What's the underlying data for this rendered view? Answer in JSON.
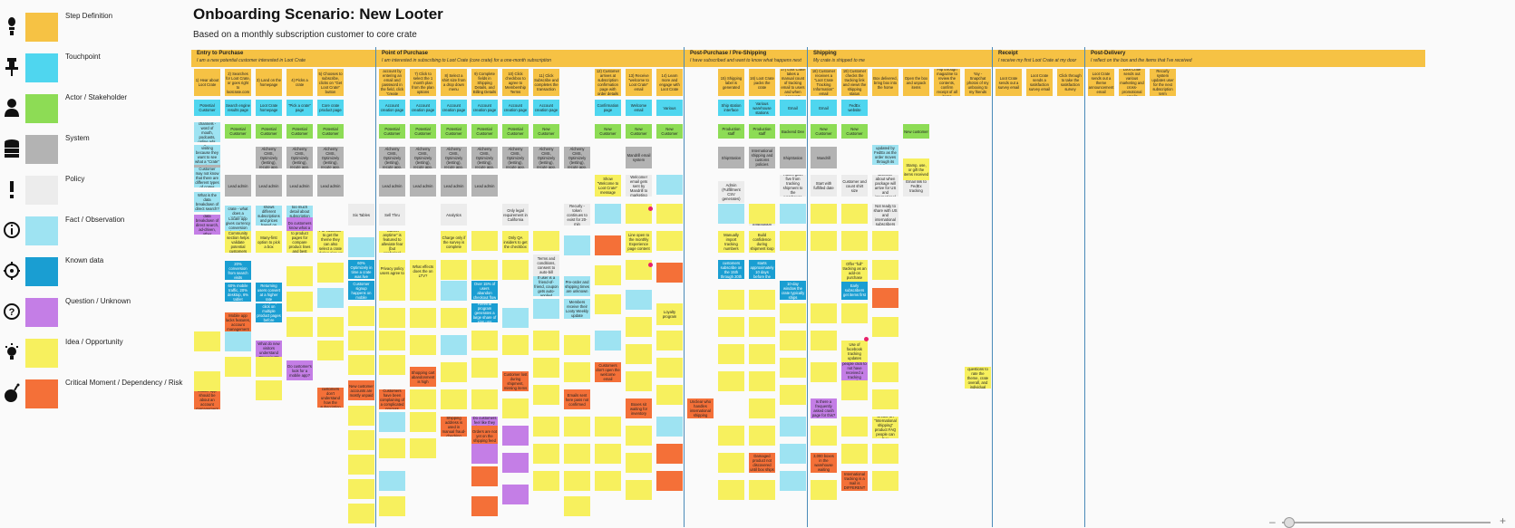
{
  "title": "Onboarding Scenario: New Looter",
  "subtitle": "Based on a monthly subscription customer to core crate",
  "legend": [
    {
      "icon": "footsteps-icon",
      "label": "Step Definition",
      "color": "#f6c244"
    },
    {
      "icon": "pushpin-icon",
      "label": "Touchpoint",
      "color": "#4fd6ef"
    },
    {
      "icon": "person-icon",
      "label": "Actor / Stakeholder",
      "color": "#8ddc55"
    },
    {
      "icon": "database-icon",
      "label": "System",
      "color": "#b3b3b3"
    },
    {
      "icon": "exclamation-icon",
      "label": "Policy",
      "color": "#ececec"
    },
    {
      "icon": "info-icon",
      "label": "Fact / Observation",
      "color": "#9ee3f2"
    },
    {
      "icon": "target-icon",
      "label": "Known data",
      "color": "#1a9ed2"
    },
    {
      "icon": "question-icon",
      "label": "Question / Unknown",
      "color": "#c47ee6"
    },
    {
      "icon": "lightbulb-icon",
      "label": "Idea / Opportunity",
      "color": "#f7f05e"
    },
    {
      "icon": "bomb-icon",
      "label": "Critical Moment / Dependency / Risk",
      "color": "#f47038"
    }
  ],
  "stages": [
    {
      "name": "Entry to Purchase",
      "desc": "I am a new potential customer interested in Loot Crate"
    },
    {
      "name": "Point of Purchase",
      "desc": "I am interested in subscribing to Loot Crate (core crate) for a one-month subscription"
    },
    {
      "name": "Post-Purchase / Pre-Shipping",
      "desc": "I have subscribed and want to know what happens next"
    },
    {
      "name": "Shipping",
      "desc": "My crate is shipped to me"
    },
    {
      "name": "Receipt",
      "desc": "I receive my first Loot Crate at my door"
    },
    {
      "name": "Post-Delivery",
      "desc": "I reflect on the box and the items that I've received"
    }
  ],
  "steps": [
    "1) Hear about Loot Crate",
    "2) Searches for Loot Crate, or goes right to lootcrate.com",
    "3) Land on the homepage",
    "4) Picks a crate",
    "5) Chooses to subscribe, clicks on \"Get Loot Crate\" button",
    "6) Create an account by entering an email and password in the field, click \"create account\"",
    "7) Click to select the 1 month plan from the plan options",
    "8) Select a shirt size from a drop down menu",
    "9) Complete fields in Shipping Details, and Billing Details",
    "10) Click checkbox to agree to Membership Terms",
    "11) Click Subscribe and completes the transaction",
    "12) Customer arrives at subscription confirmation page with order details",
    "13) Receive \"welcome to Loot Crate\" email",
    "14) Learn more and engage with Loot Crate",
    "15) Shipping label is generated",
    "16) Loot Crate packs the crate",
    "17) Loot Crate takes a manual count of tracking email to users and when accounts",
    "18) Customer receives a \"Loot Crate Tracking Information\" email",
    "19) Customer checks the tracking link and views the shipping status",
    "Box delivered, bring box into the home",
    "Open the box and unpack items",
    "Flip through magazine to review the contents, confirm receipt of all items",
    "Yay - Snapchat photos of my unboxing to my friends",
    "Loot Crate sends out a survey email",
    "Loot Crate sends a satisfaction survey email",
    "Click through to take the satisfaction survey",
    "Loot Crate sends out a theme announcement email",
    "Loot Crate sends out various marketing and cross-promotional emails",
    "Recurly system updates user for the next subscription term"
  ],
  "touchpoints": [
    "Potential Customer",
    "Search engine results page",
    "Loot Crate homepage",
    "\"Pick a crate\" page",
    "Core crate product page",
    "Account creation page",
    "Account creation page",
    "Account creation page",
    "Account creation page",
    "Account creation page",
    "Account creation page",
    "Confirmation page",
    "Welcome email",
    "Various",
    "Ship station interface",
    "Various warehouse stations",
    "Email",
    "Email",
    "FedEx website"
  ],
  "actors": [
    "Potential Customer",
    "Potential Customer",
    "Potential Customer",
    "Potential Customer",
    "Potential Customer",
    "Potential Customer",
    "Potential Customer",
    "Potential Customer",
    "Potential Customer",
    "Potential Customer",
    "New Customer",
    "New Customer",
    "New Customer",
    "New Customer",
    "Production staff",
    "Production staff",
    "Backend Dev",
    "New Customer",
    "New Customer",
    "New customer"
  ],
  "systems": [
    "Search engines",
    "Website, Alchemy CMS, Optimizely (testing), recute app, GA",
    "Website, Alchemy CMS, Optimizely (testing), recute app, GA",
    "Website, Alchemy CMS, Optimizely (testing), recute app, GA",
    "Website, Alchemy CMS, Optimizely (testing), recute app, GA",
    "Website, Alchemy CMS, Optimizely (testing), recute app, GA",
    "Website, Alchemy CMS, Optimizely (testing), recute app, GA",
    "Website, Alchemy CMS, Optimizely (testing), recute app, GA",
    "Website, Alchemy CMS, Optimizely (testing), recute app, GA",
    "Website, Alchemy CMS, Optimizely (testing), recute app, GA",
    "Website, Alchemy CMS, Optimizely (testing), recute app, GA",
    "Mandrill email system",
    "ShipStation",
    "International shipping and customs policies",
    "ShipStation",
    "Mandrill"
  ],
  "questions": [
    "What is the data breakdown of direct search, ad-driven, other channels?",
    "Do customers know what a 'crate' is?",
    "What do new visitors understand \"Booming\"?",
    "Do customer's look for a mobile app?",
    "Do customers feel like they know what they're getting?",
    "Why do some people click to not have received a tracking email?",
    "Is there a frequently asked crash page for this?"
  ],
  "ideas": [
    "Community section helps validate potential customers",
    "Many-first option to pick a box",
    "Click through to product pages for compare product lines and best items",
    "For customer to get the theme they can also select a crate during sign up",
    "\"Cancel anytime\" is featured to alleviate fear (but confusing)",
    "Privacy policy users agree to",
    "What effects does the on LTV?",
    "Charge only if the survey is complete",
    "Loyalty program",
    "Only QA insiders to get the checkbox",
    "Show \"Welcome to Loot Crate\" message",
    "Line open to the monthly Experience page content",
    "Manually import tracking numbers",
    "Build confidence during shipment loop",
    "Offer \"full\" tracking as an add-on purchase",
    "Stamp, use, or gift the items received",
    "Answer questions to rate the theme, crate overall, and individual items",
    "Use of facebook tracking updates",
    "Create an \"International shipping\" product FAQ people can buy"
  ],
  "risks": [
    "Mobile app lacks features, account management",
    "Mobile app should be about an account management",
    "Many customers don't understand how the subscription works",
    "New customer accounts are mostly unpaid",
    "Customers have been complaining of a complicated process",
    "Shopping cart abandonment is high",
    "Shipping address is used in manual fraud-checking",
    "Orders are not yet on the shipping feed",
    "Customer lost during shipment, missing items",
    "Emails sent here pass not confirmed",
    "Boxes sit waiting for inventory",
    "Customers don't open the welcome email",
    "Unclear who handles international shipping",
    "Damaged product not discovered until box ships",
    "3,000 boxes in the warehouse waiting",
    "International tracking is a mail is DIFFERENT"
  ],
  "facts": [
    "Can happen via many channels - word of mouth, podcasts, online ads, search results etc",
    "Might be visiting because they want to see what a \"Crate\" is",
    "Customer may not know that there are different types of crates",
    "What is the data breakdown of direct search?",
    "Locale app shows different subscriptions and prices based on geolocation",
    "Don't reveal too much detail about subscription lifecycle before purchase",
    "Most recent crate - what does a returning customer see?",
    "Tracking information is updated by FedEx as the order moves through its delivery checkpoints",
    "Pre-order and shipping times are unknown",
    "If user is a friend-of-friend, coupon gets auto-applied",
    "Members receive their Looty Weekly update",
    "Locale app gives currency conversion based on location"
  ],
  "known": [
    "20% conversion from search visits",
    "60% mobile traffic, 20% desktop, 6% tablet",
    "Returning users convert at a higher rate",
    "50% of people click on multiple product pages before converting",
    "60% Optimizely in time a crate was live",
    "Customer signup happens on mobile",
    "Over 15% of users abandon checkout flow",
    "Referral program generates a large share of sign ups",
    "Most customers subscribe on the 15th through 20th of the month",
    "Production starts approximately 10 days before the crate ships",
    "10-day window the crate typically ships",
    "Early subscribers get items first"
  ],
  "misc": [
    "Lead admin",
    "Lead admin",
    "Lead admin",
    "Lead admin",
    "Lead admin",
    "Lead admin",
    "Lead admin",
    "Lead admin",
    "Sell Thru",
    "Terms and conditions, consent to auto-bill",
    "Analytics",
    "Only legal requirement in California",
    "Recurly - token continues to exist for 20-min",
    "Combines welcome message with order confirmation",
    "Welcome! email gets sent by Mandrill to marketing",
    "Admin (Fulfillment CSV generates)",
    "Do not automatically send tracking info through ShipStation",
    "Tracks gave five from tracking shipment to the warehouse",
    "Start with fulfilled date",
    "Customer and count shirt size",
    "Discover about when package will arrive for US and international",
    "Six Tables",
    "Not ready to share with US and international subscribers",
    "Email link to FedEx tracking"
  ]
}
